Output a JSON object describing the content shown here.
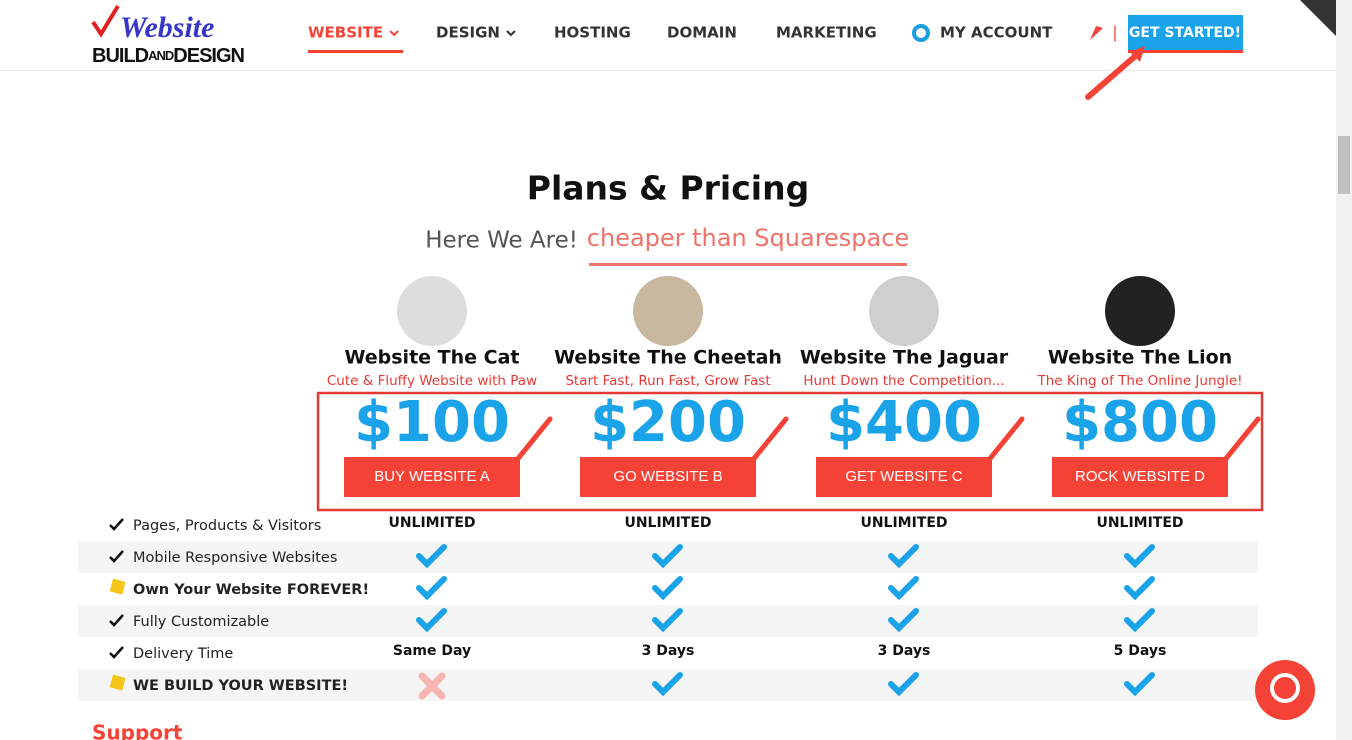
{
  "logo": {
    "word": "Website",
    "parts": [
      "BUILD",
      "AND",
      "DESIGN"
    ]
  },
  "nav": {
    "items": [
      "WEBSITE",
      "DESIGN",
      "HOSTING",
      "DOMAIN",
      "MARKETING",
      "MY ACCOUNT"
    ],
    "separator": "|",
    "cta": "GET STARTED!"
  },
  "heading": "Plans & Pricing",
  "tagline": {
    "lead": "Here We Are!",
    "highlight": "cheaper than Squarespace"
  },
  "plans": [
    {
      "name": "Website The Cat",
      "subtitle": "Cute & Fluffy Website with Paw",
      "price": "$100",
      "button": "BUY WEBSITE A"
    },
    {
      "name": "Website The Cheetah",
      "subtitle": "Start Fast, Run Fast, Grow Fast",
      "price": "$200",
      "button": "GO WEBSITE B"
    },
    {
      "name": "Website The Jaguar",
      "subtitle": "Hunt Down the Competition...",
      "price": "$400",
      "button": "GET WEBSITE C"
    },
    {
      "name": "Website The Lion",
      "subtitle": "The King of The Online Jungle!",
      "price": "$800",
      "button": "ROCK WEBSITE D"
    }
  ],
  "features": [
    {
      "label": "Pages, Products & Visitors",
      "bold": false,
      "cells": [
        "UNLIMITED",
        "UNLIMITED",
        "UNLIMITED",
        "UNLIMITED"
      ]
    },
    {
      "label": "Mobile Responsive Websites",
      "bold": false,
      "cells": [
        true,
        true,
        true,
        true
      ]
    },
    {
      "label": "Own Your Website FOREVER!",
      "bold": true,
      "cells": [
        true,
        true,
        true,
        true
      ]
    },
    {
      "label": "Fully Customizable",
      "bold": false,
      "cells": [
        true,
        true,
        true,
        true
      ]
    },
    {
      "label": "Delivery Time",
      "bold": false,
      "cells": [
        "Same Day",
        "3 Days",
        "3 Days",
        "5 Days"
      ]
    },
    {
      "label": "WE BUILD YOUR WEBSITE!",
      "bold": true,
      "cells": [
        false,
        true,
        true,
        true
      ]
    }
  ],
  "support": "Support"
}
